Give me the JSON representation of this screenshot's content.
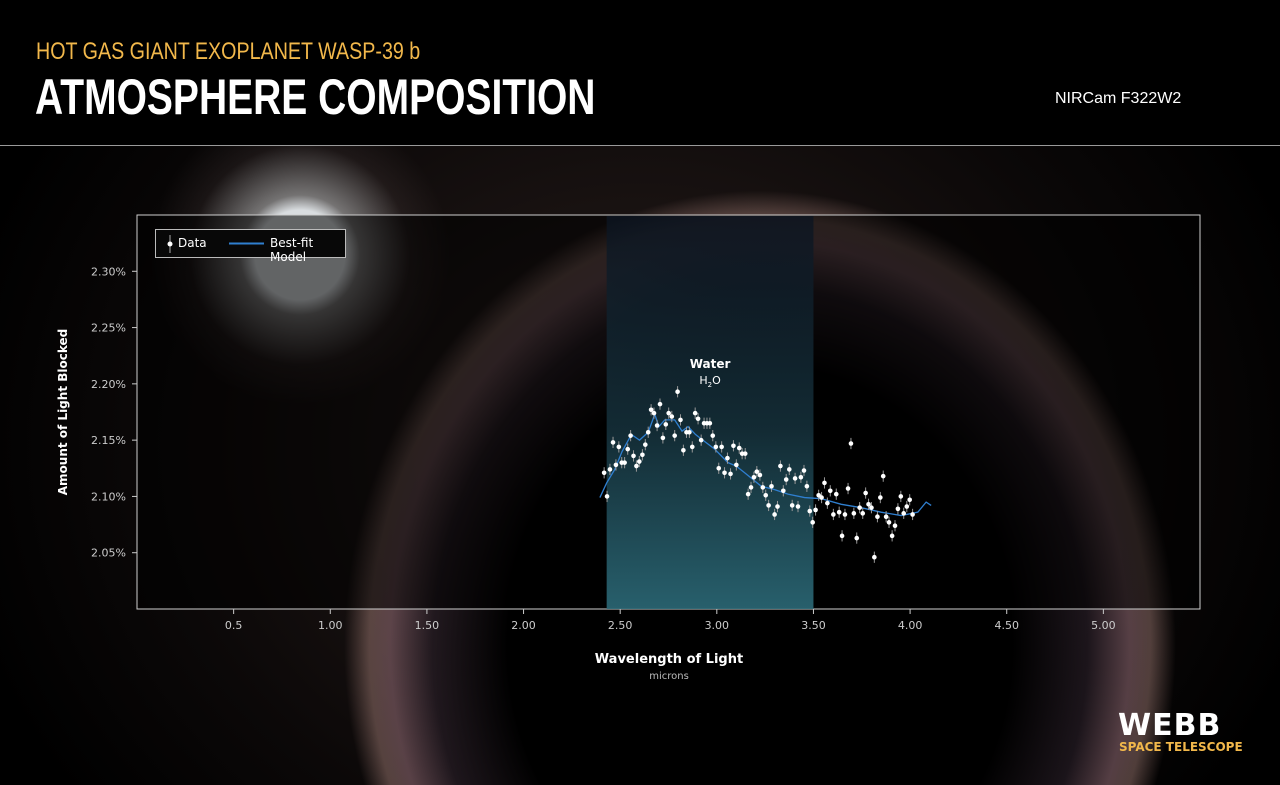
{
  "header": {
    "kicker": "HOT GAS GIANT EXOPLANET WASP-39 b",
    "title": "ATMOSPHERE COMPOSITION",
    "instrument": "NIRCam F322W2"
  },
  "logo": {
    "name": "WEBB",
    "subtitle": "SPACE TELESCOPE"
  },
  "colors": {
    "kicker": "#f2b84b",
    "data": "#ffffff",
    "model": "#2f7fd0",
    "band": "#2c6a78"
  },
  "chart_data": {
    "type": "scatter",
    "title": "",
    "xlabel": "Wavelength of Light",
    "xlabel_sub": "microns",
    "ylabel": "Amount of Light Blocked",
    "xlim": [
      0,
      5.5
    ],
    "ylim": [
      2.0,
      2.35
    ],
    "xticks": [
      0.5,
      1.0,
      1.5,
      2.0,
      2.5,
      3.0,
      3.5,
      4.0,
      4.5,
      5.0
    ],
    "xtick_labels": [
      "0.5",
      "1.00",
      "1.50",
      "2.00",
      "2.50",
      "3.00",
      "3.50",
      "4.00",
      "4.50",
      "5.00"
    ],
    "yticks": [
      2.05,
      2.1,
      2.15,
      2.2,
      2.25,
      2.3
    ],
    "ytick_labels": [
      "2.05%",
      "2.10%",
      "2.15%",
      "2.20%",
      "2.25%",
      "2.30%"
    ],
    "grid": false,
    "legend": {
      "placement": "top-left",
      "entries": [
        "Data",
        "Best-fit Model"
      ]
    },
    "bands": [
      {
        "label": "Water",
        "sublabel": "H",
        "sub2": "2",
        "sub3": "O",
        "x0": 2.43,
        "x1": 3.5
      }
    ],
    "series": [
      {
        "name": "Data",
        "type": "scatter",
        "yerr": 0.005,
        "x": [
          2.417,
          2.432,
          2.447,
          2.463,
          2.478,
          2.493,
          2.508,
          2.523,
          2.539,
          2.554,
          2.569,
          2.584,
          2.599,
          2.615,
          2.63,
          2.645,
          2.66,
          2.675,
          2.691,
          2.706,
          2.721,
          2.736,
          2.751,
          2.767,
          2.782,
          2.797,
          2.812,
          2.827,
          2.843,
          2.858,
          2.873,
          2.888,
          2.903,
          2.919,
          2.934,
          2.949,
          2.964,
          2.979,
          2.995,
          3.01,
          3.025,
          3.04,
          3.055,
          3.071,
          3.086,
          3.101,
          3.116,
          3.131,
          3.147,
          3.162,
          3.177,
          3.192,
          3.207,
          3.223,
          3.238,
          3.253,
          3.268,
          3.283,
          3.299,
          3.314,
          3.329,
          3.344,
          3.359,
          3.375,
          3.39,
          3.405,
          3.42,
          3.435,
          3.451,
          3.466,
          3.481,
          3.496,
          3.511,
          3.527,
          3.542,
          3.557,
          3.572,
          3.587,
          3.603,
          3.618,
          3.633,
          3.648,
          3.663,
          3.679,
          3.694,
          3.709,
          3.724,
          3.739,
          3.755,
          3.77,
          3.785,
          3.8,
          3.815,
          3.831,
          3.846,
          3.861,
          3.876,
          3.891,
          3.907,
          3.922,
          3.937,
          3.952,
          3.967,
          3.983,
          3.998,
          4.013
        ],
        "y": [
          2.121,
          2.1,
          2.124,
          2.148,
          2.128,
          2.144,
          2.13,
          2.13,
          2.142,
          2.154,
          2.136,
          2.127,
          2.131,
          2.137,
          2.146,
          2.157,
          2.177,
          2.174,
          2.163,
          2.182,
          2.152,
          2.164,
          2.174,
          2.171,
          2.154,
          2.193,
          2.168,
          2.141,
          2.157,
          2.157,
          2.144,
          2.174,
          2.169,
          2.15,
          2.165,
          2.165,
          2.165,
          2.154,
          2.144,
          2.125,
          2.144,
          2.121,
          2.134,
          2.12,
          2.145,
          2.128,
          2.143,
          2.138,
          2.138,
          2.102,
          2.108,
          2.117,
          2.122,
          2.119,
          2.108,
          2.101,
          2.092,
          2.109,
          2.084,
          2.091,
          2.127,
          2.105,
          2.115,
          2.124,
          2.092,
          2.116,
          2.091,
          2.117,
          2.123,
          2.109,
          2.087,
          2.077,
          2.088,
          2.101,
          2.099,
          2.112,
          2.094,
          2.105,
          2.084,
          2.102,
          2.086,
          2.065,
          2.084,
          2.107,
          2.147,
          2.085,
          2.063,
          2.09,
          2.085,
          2.103,
          2.093,
          2.09,
          2.046,
          2.082,
          2.099,
          2.118,
          2.082,
          2.077,
          2.065,
          2.074,
          2.089,
          2.1,
          2.085,
          2.091,
          2.097,
          2.084
        ]
      },
      {
        "name": "Best-fit Model",
        "type": "line",
        "x": [
          2.395,
          2.43,
          2.472,
          2.51,
          2.558,
          2.6,
          2.645,
          2.679,
          2.7,
          2.731,
          2.782,
          2.82,
          2.851,
          2.89,
          2.92,
          2.989,
          3.058,
          3.1,
          3.144,
          3.23,
          3.299,
          3.368,
          3.454,
          3.54,
          3.644,
          3.747,
          3.85,
          3.954,
          4.04,
          4.083,
          4.109
        ],
        "y": [
          2.099,
          2.112,
          2.124,
          2.14,
          2.155,
          2.15,
          2.157,
          2.173,
          2.162,
          2.168,
          2.168,
          2.158,
          2.162,
          2.155,
          2.151,
          2.142,
          2.13,
          2.127,
          2.121,
          2.109,
          2.106,
          2.102,
          2.099,
          2.098,
          2.093,
          2.09,
          2.086,
          2.083,
          2.086,
          2.095,
          2.092
        ]
      }
    ]
  }
}
